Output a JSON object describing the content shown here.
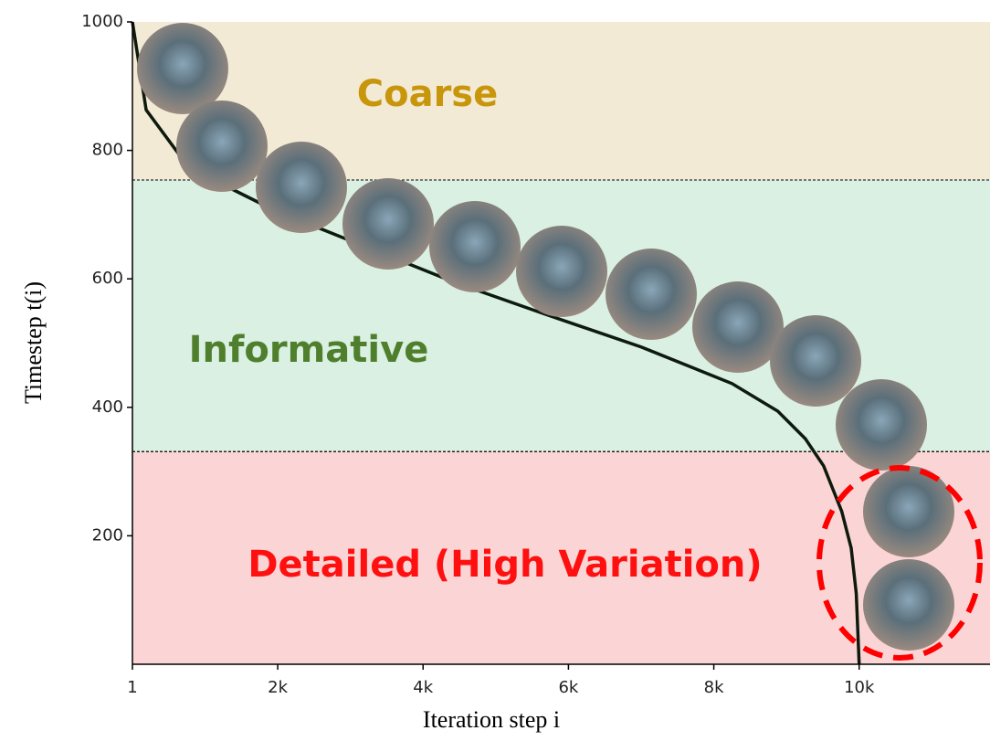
{
  "chart_data": {
    "type": "line",
    "x_label": "Iteration step i",
    "y_label": "Timestep t(i)",
    "xlim": [
      1,
      11800
    ],
    "ylim": [
      0,
      1000
    ],
    "xticks": [
      1,
      {
        "value": 2000,
        "label": "2k"
      },
      {
        "value": 4000,
        "label": "4k"
      },
      {
        "value": 6000,
        "label": "6k"
      },
      {
        "value": 8000,
        "label": "8k"
      },
      {
        "value": 10000,
        "label": "10k"
      }
    ],
    "yticks": [
      200,
      400,
      600,
      800,
      1000
    ],
    "regions": [
      {
        "label": "Coarse",
        "range": [
          754,
          1000
        ],
        "color": "#f3ead6",
        "label_color": "#c8960a"
      },
      {
        "label": "Informative",
        "range": [
          331,
          754
        ],
        "color": "#d9f0e2",
        "label_color": "#4f7f2c"
      },
      {
        "label": "Detailed (High Variation)",
        "range": [
          0,
          331
        ],
        "color": "#fbd5d5",
        "label_color": "#ff1010"
      }
    ],
    "series": [
      {
        "color": "#0d1a0d",
        "x": [
          1,
          190,
          700,
          1330,
          1950,
          3210,
          4470,
          5730,
          7000,
          8250,
          8880,
          9260,
          9510,
          9760,
          9890,
          9960,
          10000
        ],
        "values": [
          1000,
          863,
          785,
          742,
          707,
          650,
          593,
          543,
          494,
          437,
          394,
          351,
          309,
          238,
          181,
          110,
          0
        ]
      }
    ]
  }
}
